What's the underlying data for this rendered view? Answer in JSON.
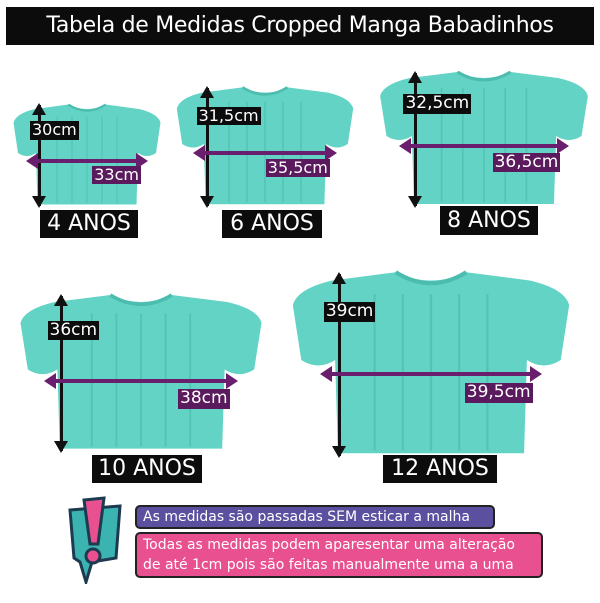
{
  "title": "Tabela de Medidas Cropped Manga Babadinhos",
  "colors": {
    "shirt": "#62d3c4",
    "width_arrow": "#6a1f6e",
    "note_blue": "#5b50a0",
    "note_pink": "#e8508f"
  },
  "sizes": [
    {
      "age": "4 ANOS",
      "length": "30cm",
      "width": "33cm"
    },
    {
      "age": "6 ANOS",
      "length": "31,5cm",
      "width": "35,5cm"
    },
    {
      "age": "8 ANOS",
      "length": "32,5cm",
      "width": "36,5cm"
    },
    {
      "age": "10 ANOS",
      "length": "36cm",
      "width": "38cm"
    },
    {
      "age": "12 ANOS",
      "length": "39cm",
      "width": "39,5cm"
    }
  ],
  "notes": {
    "icon": "exclamation-speech-bubble-icon",
    "note1": "As medidas são passadas SEM esticar a malha",
    "note2_line1": "Todas as medidas podem aparesentar uma alteração",
    "note2_line2": "de até 1cm pois são feitas manualmente uma a uma"
  }
}
